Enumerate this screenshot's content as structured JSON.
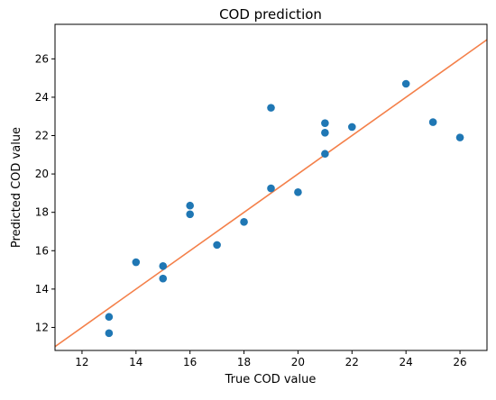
{
  "chart_data": {
    "type": "scatter",
    "title": "COD prediction",
    "xlabel": "True COD value",
    "ylabel": "Predicted COD value",
    "xlim": [
      11,
      27
    ],
    "ylim": [
      10.8,
      27.8
    ],
    "x_ticks": [
      12,
      14,
      16,
      18,
      20,
      22,
      24,
      26
    ],
    "y_ticks": [
      12,
      14,
      16,
      18,
      20,
      22,
      24,
      26
    ],
    "grid": false,
    "series": [
      {
        "kind": "points",
        "color": "#1f77b4",
        "points": [
          {
            "x": 13,
            "y": 12.55
          },
          {
            "x": 13,
            "y": 11.7
          },
          {
            "x": 14,
            "y": 15.4
          },
          {
            "x": 15,
            "y": 15.2
          },
          {
            "x": 15,
            "y": 14.55
          },
          {
            "x": 16,
            "y": 18.35
          },
          {
            "x": 16,
            "y": 17.9
          },
          {
            "x": 17,
            "y": 16.3
          },
          {
            "x": 18,
            "y": 17.5
          },
          {
            "x": 19,
            "y": 23.45
          },
          {
            "x": 19,
            "y": 19.25
          },
          {
            "x": 20,
            "y": 19.05
          },
          {
            "x": 21,
            "y": 22.65
          },
          {
            "x": 21,
            "y": 22.15
          },
          {
            "x": 21,
            "y": 21.05
          },
          {
            "x": 22,
            "y": 22.45
          },
          {
            "x": 24,
            "y": 24.7
          },
          {
            "x": 25,
            "y": 22.7
          },
          {
            "x": 26,
            "y": 21.9
          }
        ]
      },
      {
        "kind": "line",
        "color": "#f4804a",
        "points": [
          {
            "x": 11,
            "y": 11.0
          },
          {
            "x": 27,
            "y": 27.0
          }
        ]
      }
    ]
  }
}
